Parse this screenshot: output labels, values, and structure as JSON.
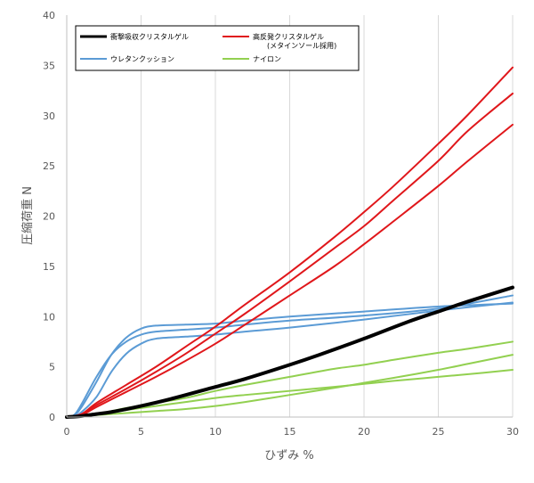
{
  "chart_data": {
    "type": "line",
    "xlabel": "ひずみ %",
    "ylabel": "圧縮荷重 N",
    "xlim": [
      0,
      30
    ],
    "ylim": [
      0,
      40
    ],
    "x_ticks": [
      "0",
      "5",
      "10",
      "15",
      "20",
      "25",
      "30"
    ],
    "y_ticks": [
      "0",
      "5",
      "10",
      "15",
      "20",
      "25",
      "30",
      "35",
      "40"
    ],
    "grid": "vertical",
    "legend_position": "top-inside",
    "legend": [
      {
        "label": "衝撃吸収クリスタルゲル",
        "color": "#000000"
      },
      {
        "label": "高反発クリスタルゲル",
        "sublabel": "(メタインソール採用)",
        "color": "#e0171b"
      },
      {
        "label": "ウレタンクッション",
        "color": "#5b9bd5"
      },
      {
        "label": "ナイロン",
        "color": "#92d050"
      }
    ],
    "series": [
      {
        "name": "衝撃吸収クリスタルゲル",
        "color": "#000000",
        "width": 4,
        "points": [
          [
            0,
            0
          ],
          [
            1,
            0.1
          ],
          [
            2,
            0.3
          ],
          [
            3,
            0.5
          ],
          [
            5,
            1.1
          ],
          [
            7,
            1.8
          ],
          [
            10,
            3
          ],
          [
            12,
            3.8
          ],
          [
            15,
            5.2
          ],
          [
            17,
            6.2
          ],
          [
            20,
            7.8
          ],
          [
            23,
            9.5
          ],
          [
            25,
            10.5
          ],
          [
            27,
            11.5
          ],
          [
            30,
            12.9
          ]
        ]
      },
      {
        "name": "高反発クリスタルゲル",
        "color": "#e0171b",
        "width": 2,
        "points": [
          [
            0,
            0
          ],
          [
            1,
            0.3
          ],
          [
            2,
            1.2
          ],
          [
            4,
            2.8
          ],
          [
            6,
            4.5
          ],
          [
            8,
            6.3
          ],
          [
            10,
            8.3
          ],
          [
            12,
            10.3
          ],
          [
            15,
            13.5
          ],
          [
            18,
            16.8
          ],
          [
            20,
            19
          ],
          [
            22,
            21.6
          ],
          [
            25,
            25.5
          ],
          [
            27,
            28.5
          ],
          [
            30,
            32.2
          ]
        ]
      },
      {
        "name": "高反発クリスタルゲル",
        "color": "#e0171b",
        "width": 2,
        "points": [
          [
            0,
            0
          ],
          [
            1,
            0.3
          ],
          [
            2,
            1.4
          ],
          [
            4,
            3.2
          ],
          [
            6,
            5
          ],
          [
            8,
            7
          ],
          [
            10,
            9
          ],
          [
            12,
            11.2
          ],
          [
            15,
            14.4
          ],
          [
            18,
            17.9
          ],
          [
            20,
            20.4
          ],
          [
            22,
            23
          ],
          [
            25,
            27.2
          ],
          [
            27,
            30.1
          ],
          [
            30,
            34.8
          ]
        ]
      },
      {
        "name": "高反発クリスタルゲル",
        "color": "#e0171b",
        "width": 2,
        "points": [
          [
            0,
            0
          ],
          [
            1,
            0.2
          ],
          [
            2,
            1
          ],
          [
            4,
            2.5
          ],
          [
            6,
            4
          ],
          [
            8,
            5.6
          ],
          [
            10,
            7.3
          ],
          [
            12,
            9.2
          ],
          [
            15,
            12.1
          ],
          [
            18,
            15
          ],
          [
            20,
            17.2
          ],
          [
            22,
            19.5
          ],
          [
            25,
            23
          ],
          [
            27,
            25.5
          ],
          [
            30,
            29.1
          ]
        ]
      },
      {
        "name": "ウレタンクッション",
        "color": "#5b9bd5",
        "width": 2,
        "points": [
          [
            0,
            0
          ],
          [
            0.5,
            0.2
          ],
          [
            1,
            1
          ],
          [
            2,
            3.5
          ],
          [
            3,
            6.2
          ],
          [
            4,
            7.9
          ],
          [
            5,
            8.8
          ],
          [
            6,
            9.1
          ],
          [
            8,
            9.2
          ],
          [
            10,
            9.3
          ],
          [
            12,
            9.6
          ],
          [
            15,
            10
          ],
          [
            20,
            10.5
          ],
          [
            25,
            11
          ],
          [
            30,
            11.3
          ]
        ]
      },
      {
        "name": "ウレタンクッション",
        "color": "#5b9bd5",
        "width": 2,
        "points": [
          [
            0,
            0
          ],
          [
            0.5,
            0.2
          ],
          [
            1,
            1.3
          ],
          [
            2,
            4
          ],
          [
            3,
            6.2
          ],
          [
            4,
            7.5
          ],
          [
            5,
            8.2
          ],
          [
            6,
            8.5
          ],
          [
            8,
            8.7
          ],
          [
            10,
            8.9
          ],
          [
            12,
            9.2
          ],
          [
            15,
            9.6
          ],
          [
            20,
            10.1
          ],
          [
            25,
            10.8
          ],
          [
            30,
            12.1
          ]
        ]
      },
      {
        "name": "ウレタンクッション",
        "color": "#5b9bd5",
        "width": 2,
        "points": [
          [
            0,
            0
          ],
          [
            0.5,
            0.1
          ],
          [
            1,
            0.5
          ],
          [
            2,
            2
          ],
          [
            3,
            4.5
          ],
          [
            4,
            6.3
          ],
          [
            5,
            7.3
          ],
          [
            6,
            7.8
          ],
          [
            8,
            8
          ],
          [
            10,
            8.2
          ],
          [
            12,
            8.5
          ],
          [
            15,
            8.9
          ],
          [
            20,
            9.7
          ],
          [
            25,
            10.6
          ],
          [
            30,
            11.4
          ]
        ]
      },
      {
        "name": "ナイロン",
        "color": "#92d050",
        "width": 2,
        "points": [
          [
            0,
            0
          ],
          [
            2,
            0.3
          ],
          [
            4,
            0.9
          ],
          [
            6,
            1.4
          ],
          [
            8,
            1.9
          ],
          [
            10,
            2.6
          ],
          [
            12,
            3.2
          ],
          [
            15,
            4
          ],
          [
            18,
            4.8
          ],
          [
            20,
            5.2
          ],
          [
            22,
            5.7
          ],
          [
            25,
            6.4
          ],
          [
            27,
            6.8
          ],
          [
            30,
            7.5
          ]
        ]
      },
      {
        "name": "ナイロン",
        "color": "#92d050",
        "width": 2,
        "points": [
          [
            0,
            0
          ],
          [
            2,
            0.3
          ],
          [
            4,
            0.7
          ],
          [
            6,
            1.1
          ],
          [
            8,
            1.5
          ],
          [
            10,
            1.9
          ],
          [
            12,
            2.2
          ],
          [
            15,
            2.6
          ],
          [
            18,
            3
          ],
          [
            20,
            3.3
          ],
          [
            22,
            3.6
          ],
          [
            25,
            4
          ],
          [
            28,
            4.4
          ],
          [
            30,
            4.7
          ]
        ]
      },
      {
        "name": "ナイロン",
        "color": "#92d050",
        "width": 2,
        "points": [
          [
            0,
            0
          ],
          [
            2,
            0.2
          ],
          [
            4,
            0.4
          ],
          [
            6,
            0.6
          ],
          [
            8,
            0.8
          ],
          [
            10,
            1.1
          ],
          [
            12,
            1.5
          ],
          [
            15,
            2.2
          ],
          [
            18,
            2.9
          ],
          [
            20,
            3.4
          ],
          [
            22,
            3.9
          ],
          [
            25,
            4.7
          ],
          [
            27,
            5.3
          ],
          [
            30,
            6.2
          ]
        ]
      }
    ]
  }
}
